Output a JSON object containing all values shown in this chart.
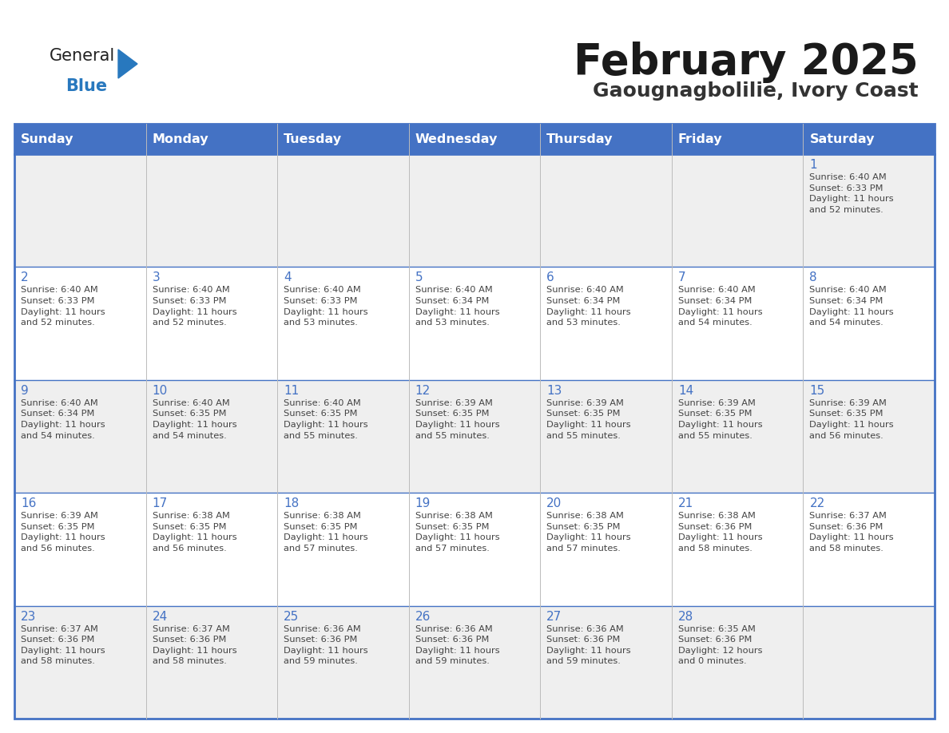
{
  "title": "February 2025",
  "subtitle": "Gaougnagbolilie, Ivory Coast",
  "days_of_week": [
    "Sunday",
    "Monday",
    "Tuesday",
    "Wednesday",
    "Thursday",
    "Friday",
    "Saturday"
  ],
  "header_bg": "#4472C4",
  "header_text": "#FFFFFF",
  "cell_bg_odd": "#EFEFEF",
  "cell_bg_even": "#FFFFFF",
  "cell_border_color": "#4472C4",
  "grid_line_color": "#4472C4",
  "day_number_color": "#4472C4",
  "info_text_color": "#444444",
  "title_color": "#1a1a1a",
  "subtitle_color": "#333333",
  "logo_general_color": "#222222",
  "logo_blue_color": "#2878BE",
  "weeks": [
    [
      {
        "day": null,
        "info": null
      },
      {
        "day": null,
        "info": null
      },
      {
        "day": null,
        "info": null
      },
      {
        "day": null,
        "info": null
      },
      {
        "day": null,
        "info": null
      },
      {
        "day": null,
        "info": null
      },
      {
        "day": 1,
        "info": "Sunrise: 6:40 AM\nSunset: 6:33 PM\nDaylight: 11 hours\nand 52 minutes."
      }
    ],
    [
      {
        "day": 2,
        "info": "Sunrise: 6:40 AM\nSunset: 6:33 PM\nDaylight: 11 hours\nand 52 minutes."
      },
      {
        "day": 3,
        "info": "Sunrise: 6:40 AM\nSunset: 6:33 PM\nDaylight: 11 hours\nand 52 minutes."
      },
      {
        "day": 4,
        "info": "Sunrise: 6:40 AM\nSunset: 6:33 PM\nDaylight: 11 hours\nand 53 minutes."
      },
      {
        "day": 5,
        "info": "Sunrise: 6:40 AM\nSunset: 6:34 PM\nDaylight: 11 hours\nand 53 minutes."
      },
      {
        "day": 6,
        "info": "Sunrise: 6:40 AM\nSunset: 6:34 PM\nDaylight: 11 hours\nand 53 minutes."
      },
      {
        "day": 7,
        "info": "Sunrise: 6:40 AM\nSunset: 6:34 PM\nDaylight: 11 hours\nand 54 minutes."
      },
      {
        "day": 8,
        "info": "Sunrise: 6:40 AM\nSunset: 6:34 PM\nDaylight: 11 hours\nand 54 minutes."
      }
    ],
    [
      {
        "day": 9,
        "info": "Sunrise: 6:40 AM\nSunset: 6:34 PM\nDaylight: 11 hours\nand 54 minutes."
      },
      {
        "day": 10,
        "info": "Sunrise: 6:40 AM\nSunset: 6:35 PM\nDaylight: 11 hours\nand 54 minutes."
      },
      {
        "day": 11,
        "info": "Sunrise: 6:40 AM\nSunset: 6:35 PM\nDaylight: 11 hours\nand 55 minutes."
      },
      {
        "day": 12,
        "info": "Sunrise: 6:39 AM\nSunset: 6:35 PM\nDaylight: 11 hours\nand 55 minutes."
      },
      {
        "day": 13,
        "info": "Sunrise: 6:39 AM\nSunset: 6:35 PM\nDaylight: 11 hours\nand 55 minutes."
      },
      {
        "day": 14,
        "info": "Sunrise: 6:39 AM\nSunset: 6:35 PM\nDaylight: 11 hours\nand 55 minutes."
      },
      {
        "day": 15,
        "info": "Sunrise: 6:39 AM\nSunset: 6:35 PM\nDaylight: 11 hours\nand 56 minutes."
      }
    ],
    [
      {
        "day": 16,
        "info": "Sunrise: 6:39 AM\nSunset: 6:35 PM\nDaylight: 11 hours\nand 56 minutes."
      },
      {
        "day": 17,
        "info": "Sunrise: 6:38 AM\nSunset: 6:35 PM\nDaylight: 11 hours\nand 56 minutes."
      },
      {
        "day": 18,
        "info": "Sunrise: 6:38 AM\nSunset: 6:35 PM\nDaylight: 11 hours\nand 57 minutes."
      },
      {
        "day": 19,
        "info": "Sunrise: 6:38 AM\nSunset: 6:35 PM\nDaylight: 11 hours\nand 57 minutes."
      },
      {
        "day": 20,
        "info": "Sunrise: 6:38 AM\nSunset: 6:35 PM\nDaylight: 11 hours\nand 57 minutes."
      },
      {
        "day": 21,
        "info": "Sunrise: 6:38 AM\nSunset: 6:36 PM\nDaylight: 11 hours\nand 58 minutes."
      },
      {
        "day": 22,
        "info": "Sunrise: 6:37 AM\nSunset: 6:36 PM\nDaylight: 11 hours\nand 58 minutes."
      }
    ],
    [
      {
        "day": 23,
        "info": "Sunrise: 6:37 AM\nSunset: 6:36 PM\nDaylight: 11 hours\nand 58 minutes."
      },
      {
        "day": 24,
        "info": "Sunrise: 6:37 AM\nSunset: 6:36 PM\nDaylight: 11 hours\nand 58 minutes."
      },
      {
        "day": 25,
        "info": "Sunrise: 6:36 AM\nSunset: 6:36 PM\nDaylight: 11 hours\nand 59 minutes."
      },
      {
        "day": 26,
        "info": "Sunrise: 6:36 AM\nSunset: 6:36 PM\nDaylight: 11 hours\nand 59 minutes."
      },
      {
        "day": 27,
        "info": "Sunrise: 6:36 AM\nSunset: 6:36 PM\nDaylight: 11 hours\nand 59 minutes."
      },
      {
        "day": 28,
        "info": "Sunrise: 6:35 AM\nSunset: 6:36 PM\nDaylight: 12 hours\nand 0 minutes."
      },
      {
        "day": null,
        "info": null
      }
    ]
  ],
  "fig_width": 11.88,
  "fig_height": 9.18,
  "dpi": 100
}
